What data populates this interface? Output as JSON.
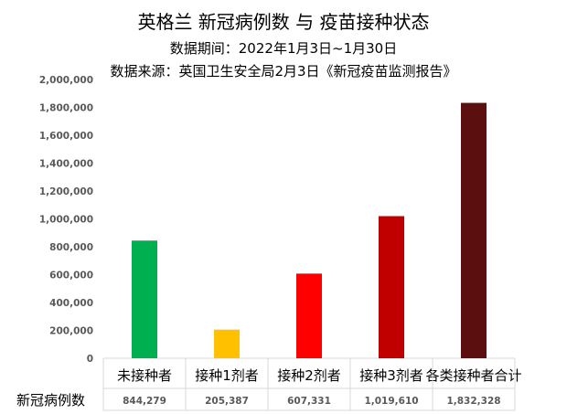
{
  "chart_data": {
    "type": "bar",
    "title": "英格兰 新冠病例数 与 疫苗接种状态",
    "subtitle": "数据期间：2022年1月3日~1月30日",
    "source": "数据来源：英国卫生安全局2月3日《新冠疫苗监测报告》",
    "categories": [
      "未接种者",
      "接种1剂者",
      "接种2剂者",
      "接种3剂者",
      "各类接种者合计"
    ],
    "series": [
      {
        "name": "新冠病例数",
        "values": [
          844279,
          205387,
          607331,
          1019610,
          1832328
        ]
      }
    ],
    "value_labels": [
      "844,279",
      "205,387",
      "607,331",
      "1,019,610",
      "1,832,328"
    ],
    "y_ticks": [
      "0",
      "200,000",
      "400,000",
      "600,000",
      "800,000",
      "1,000,000",
      "1,200,000",
      "1,400,000",
      "1,600,000",
      "1,800,000",
      "2,000,000"
    ],
    "ylim": [
      0,
      2000000
    ],
    "grid": false,
    "legend": "none",
    "colors": [
      "#00B050",
      "#FFC000",
      "#FF0000",
      "#C00000",
      "#5C0F0F"
    ]
  }
}
